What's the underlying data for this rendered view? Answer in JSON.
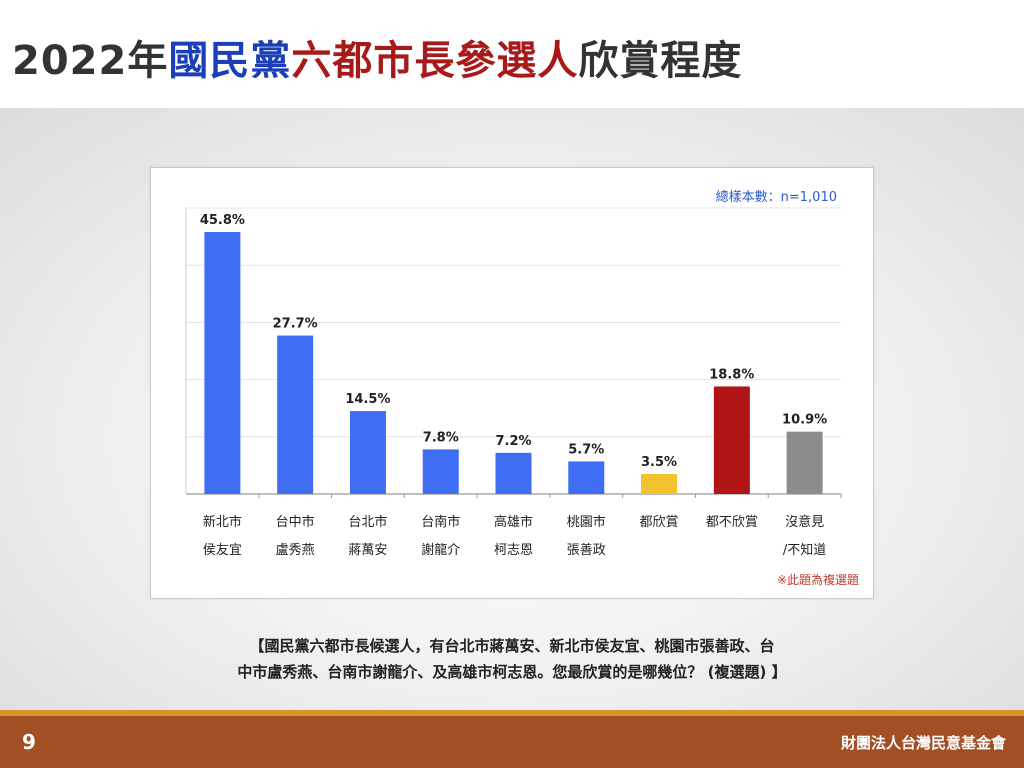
{
  "title": {
    "part1": "2022年",
    "part2": "國民黨",
    "part3": "六都市長參選人",
    "part4": "欣賞程度"
  },
  "sample_size": "總樣本數：n=1,010",
  "note": "※此題為複選題",
  "question_lines": [
    "【國民黨六都市長候選人，有台北市蔣萬安、新北市侯友宜、桃園市張善政、台",
    "中市盧秀燕、台南市謝龍介、及高雄市柯志恩。您最欣賞的是哪幾位？ (複選題) 】"
  ],
  "page_number": "9",
  "organization": "財團法人台灣民意基金會",
  "colors": {
    "blue_bar": "#3f6ef5",
    "yellow_bar": "#f2c12e",
    "red_bar": "#b01414",
    "gray_bar": "#8c8c8c"
  },
  "chart_data": {
    "type": "bar",
    "categories": [
      [
        "新北市",
        "侯友宜"
      ],
      [
        "台中市",
        "盧秀燕"
      ],
      [
        "台北市",
        "蔣萬安"
      ],
      [
        "台南市",
        "謝龍介"
      ],
      [
        "高雄市",
        "柯志恩"
      ],
      [
        "桃園市",
        "張善政"
      ],
      [
        "都欣賞"
      ],
      [
        "都不欣賞"
      ],
      [
        "沒意見",
        "/不知道"
      ]
    ],
    "values": [
      45.8,
      27.7,
      14.5,
      7.8,
      7.2,
      5.7,
      3.5,
      18.8,
      10.9
    ],
    "value_labels": [
      "45.8%",
      "27.7%",
      "14.5%",
      "7.8%",
      "7.2%",
      "5.7%",
      "3.5%",
      "18.8%",
      "10.9%"
    ],
    "bar_colors": [
      "#3f6ef5",
      "#3f6ef5",
      "#3f6ef5",
      "#3f6ef5",
      "#3f6ef5",
      "#3f6ef5",
      "#f2c12e",
      "#b01414",
      "#8c8c8c"
    ],
    "ylim": [
      0,
      50
    ],
    "gridlines": [
      0,
      10,
      20,
      30,
      40,
      50
    ],
    "grid": true,
    "xlabel": "",
    "ylabel": ""
  }
}
